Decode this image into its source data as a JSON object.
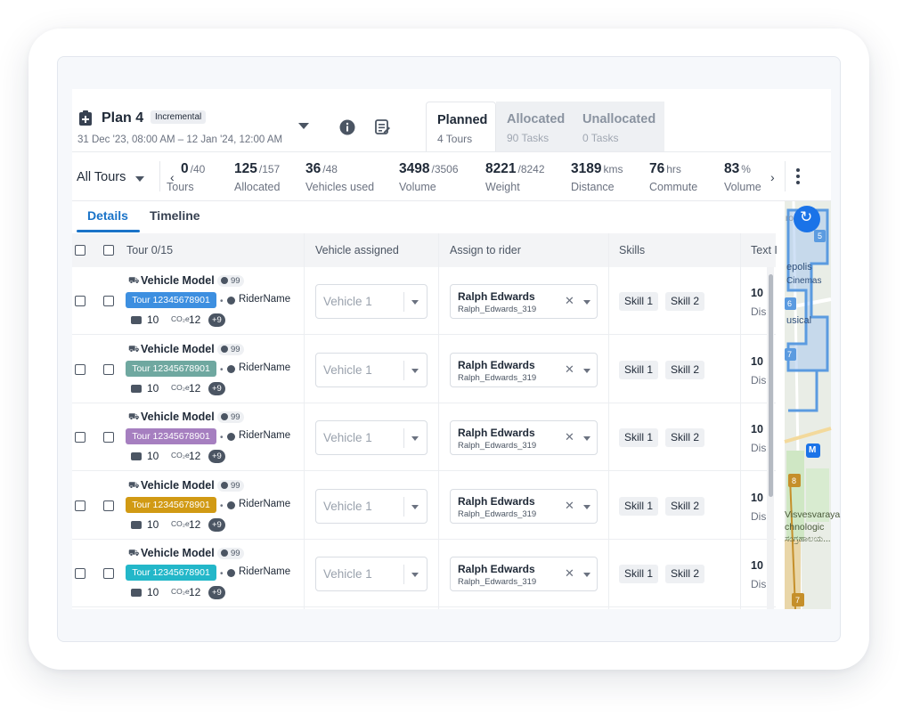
{
  "plan": {
    "title": "Plan 4",
    "badge": "Incremental",
    "dates": "31 Dec '23, 08:00 AM – 12 Jan '24, 12:00 AM"
  },
  "status_tabs": [
    {
      "label": "Planned",
      "sub": "4 Tours",
      "active": true
    },
    {
      "label": "Allocated",
      "sub": "90 Tasks",
      "active": false
    },
    {
      "label": "Unallocated",
      "sub": "0 Tasks",
      "active": false
    }
  ],
  "stats": {
    "filter_label": "All Tours",
    "items": [
      {
        "value": "0",
        "total": "/40",
        "label": "Tours"
      },
      {
        "value": "125",
        "total": "/157",
        "label": "Allocated"
      },
      {
        "value": "36",
        "total": "/48",
        "label": "Vehicles used"
      },
      {
        "value": "3498",
        "total": "/3506",
        "label": "Volume"
      },
      {
        "value": "8221",
        "total": "/8242",
        "label": "Weight"
      },
      {
        "value": "3189",
        "total": "kms",
        "label": "Distance"
      },
      {
        "value": "76",
        "total": "hrs",
        "label": "Commute"
      },
      {
        "value": "83",
        "total": "%",
        "label": "Volume"
      }
    ],
    "prev_glyph": "‹",
    "next_glyph": "›"
  },
  "detail_tabs": {
    "details": "Details",
    "timeline": "Timeline"
  },
  "table": {
    "headers": {
      "tour": "Tour 0/15",
      "vehicle": "Vehicle assigned",
      "rider": "Assign to rider",
      "skills": "Skills",
      "text": "Text I"
    },
    "rows": [
      {
        "vehicle_model": "Vehicle Model",
        "model_count": "99",
        "tour_id": "Tour 12345678901",
        "tag_color": "#3d8fe0",
        "rider_label": "RiderName",
        "stat_a": "10",
        "stat_b": "12",
        "more": "+9",
        "vehicle_placeholder": "Vehicle 1",
        "rider_name": "Ralph Edwards",
        "rider_user": "Ralph_Edwards_319",
        "skill_1": "Skill 1",
        "skill_2": "Skill 2",
        "text_top": "10 I",
        "text_bot": "Dis"
      },
      {
        "vehicle_model": "Vehicle Model",
        "model_count": "99",
        "tour_id": "Tour 12345678901",
        "tag_color": "#6fa8a0",
        "rider_label": "RiderName",
        "stat_a": "10",
        "stat_b": "12",
        "more": "+9",
        "vehicle_placeholder": "Vehicle 1",
        "rider_name": "Ralph Edwards",
        "rider_user": "Ralph_Edwards_319",
        "skill_1": "Skill 1",
        "skill_2": "Skill 2",
        "text_top": "10 I",
        "text_bot": "Dis"
      },
      {
        "vehicle_model": "Vehicle Model",
        "model_count": "99",
        "tour_id": "Tour 12345678901",
        "tag_color": "#a67fc0",
        "rider_label": "RiderName",
        "stat_a": "10",
        "stat_b": "12",
        "more": "+9",
        "vehicle_placeholder": "Vehicle 1",
        "rider_name": "Ralph Edwards",
        "rider_user": "Ralph_Edwards_319",
        "skill_1": "Skill 1",
        "skill_2": "Skill 2",
        "text_top": "10 I",
        "text_bot": "Dis"
      },
      {
        "vehicle_model": "Vehicle Model",
        "model_count": "99",
        "tour_id": "Tour 12345678901",
        "tag_color": "#d19a14",
        "rider_label": "RiderName",
        "stat_a": "10",
        "stat_b": "12",
        "more": "+9",
        "vehicle_placeholder": "Vehicle 1",
        "rider_name": "Ralph Edwards",
        "rider_user": "Ralph_Edwards_319",
        "skill_1": "Skill 1",
        "skill_2": "Skill 2",
        "text_top": "10 I",
        "text_bot": "Dis"
      },
      {
        "vehicle_model": "Vehicle Model",
        "model_count": "99",
        "tour_id": "Tour 12345678901",
        "tag_color": "#23b7c9",
        "rider_label": "RiderName",
        "stat_a": "10",
        "stat_b": "12",
        "more": "+9",
        "vehicle_placeholder": "Vehicle 1",
        "rider_name": "Ralph Edwards",
        "rider_user": "Ralph_Edwards_319",
        "skill_1": "Skill 1",
        "skill_2": "Skill 2",
        "text_top": "10 I",
        "text_bot": "Dis"
      }
    ]
  },
  "map": {
    "labels": [
      "ros",
      "epolis",
      "Cinemas",
      "usical",
      "Visvesvaraya",
      "chnologic",
      "ಸಂಗ್ರಹಾಲಯ..."
    ],
    "markers": [
      "5",
      "6",
      "7",
      "8",
      "7",
      "M"
    ],
    "refresh_glyph": "↻"
  },
  "colors": {
    "accent": "#1a73c8",
    "route": "#5b9be0",
    "map_bg": "#e9ede6"
  }
}
